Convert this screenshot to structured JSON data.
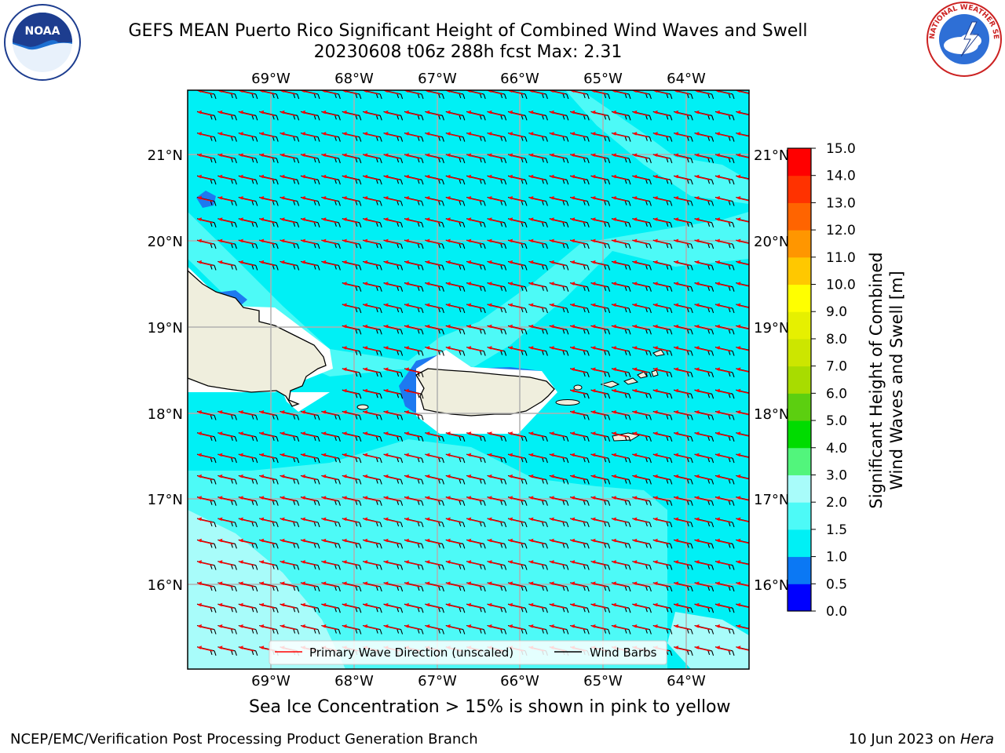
{
  "title": {
    "line1": "GEFS MEAN Puerto Rico Significant Height of Combined Wind Waves and Swell",
    "line2": "20230608 t06z 288h fcst   Max: 2.31"
  },
  "map": {
    "lon_labels": [
      "69°W",
      "68°W",
      "67°W",
      "66°W",
      "65°W",
      "64°W"
    ],
    "lat_labels": [
      "21°N",
      "20°N",
      "19°N",
      "18°N",
      "17°N",
      "16°N"
    ],
    "colors": {
      "field_base": "#00f0f5",
      "field_mid": "#4dfaf7",
      "field_light": "#a8fcfa",
      "field_low": "#1d79f0",
      "land": "#efeedd",
      "arrow": "#ff0000",
      "barb": "#000000"
    },
    "legend": {
      "wave_label": "Primary Wave Direction (unscaled)",
      "barb_label": "Wind Barbs"
    },
    "primary_wave_direction_icon": "red-arrow-icon",
    "wind_barb_icon": "black-barb-icon"
  },
  "colorbar": {
    "label_line1": "Significant Height of Combined",
    "label_line2": "Wind Waves and Swell [m]",
    "ticks": [
      "0.0",
      "0.5",
      "1.0",
      "1.5",
      "2.0",
      "3.0",
      "4.0",
      "5.0",
      "6.0",
      "7.0",
      "8.0",
      "9.0",
      "10.0",
      "11.0",
      "12.0",
      "13.0",
      "14.0",
      "15.0"
    ],
    "colors": [
      "#0000ff",
      "#0b78f4",
      "#00f0f5",
      "#4dfaf7",
      "#a8fcfa",
      "#52f57c",
      "#00dc00",
      "#5ccf10",
      "#a8dc00",
      "#cce600",
      "#e6f000",
      "#ffff00",
      "#ffc800",
      "#ff9600",
      "#ff6400",
      "#ff3200",
      "#ff0000"
    ]
  },
  "ice_note": "Sea Ice Concentration > 15% is shown in pink to yellow",
  "footer": {
    "left": "NCEP/EMC/Verification Post Processing Product Generation Branch",
    "right_prefix": "10 Jun 2023 on ",
    "right_machine": "Hera"
  },
  "logos": {
    "noaa_text": "NOAA",
    "nws_text": "NATIONAL WEATHER SERVICE"
  }
}
